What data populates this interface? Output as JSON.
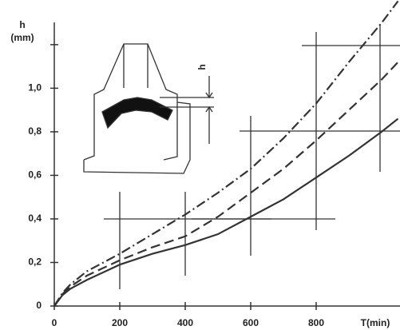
{
  "chart_data": {
    "type": "line",
    "y_label": [
      "h",
      "(mm)"
    ],
    "x_label": "T(min)",
    "inset_label": "h",
    "x": [
      0,
      25,
      50,
      100,
      200,
      300,
      400,
      500,
      600,
      700,
      800,
      900,
      1000,
      1050
    ],
    "series": [
      {
        "color": "#333333",
        "style": "solid",
        "values": [
          0,
          0.05,
          0.08,
          0.12,
          0.19,
          0.24,
          0.28,
          0.33,
          0.41,
          0.49,
          0.59,
          0.69,
          0.8,
          0.86
        ]
      },
      {
        "color": "#333333",
        "style": "dashed",
        "values": [
          0,
          0.055,
          0.09,
          0.14,
          0.21,
          0.27,
          0.32,
          0.41,
          0.52,
          0.63,
          0.76,
          0.9,
          1.04,
          1.12
        ]
      },
      {
        "color": "#333333",
        "style": "dashdot",
        "values": [
          0,
          0.06,
          0.1,
          0.16,
          0.24,
          0.33,
          0.42,
          0.52,
          0.63,
          0.77,
          0.93,
          1.12,
          1.3,
          1.4
        ]
      }
    ],
    "xlim": [
      0,
      1058
    ],
    "ylim": [
      0,
      1.405
    ],
    "xticks": [
      0,
      200,
      400,
      600,
      800
    ],
    "yticks": [
      0,
      {
        "value": 0.2,
        "label": "0,2"
      },
      {
        "value": 0.4,
        "label": "0,4"
      },
      {
        "value": 0.6,
        "label": "0,6"
      },
      {
        "value": 0.8,
        "label": "0,8"
      },
      {
        "value": 1.0,
        "label": "1,0"
      },
      {
        "value": 1.2,
        "label": null
      }
    ]
  }
}
